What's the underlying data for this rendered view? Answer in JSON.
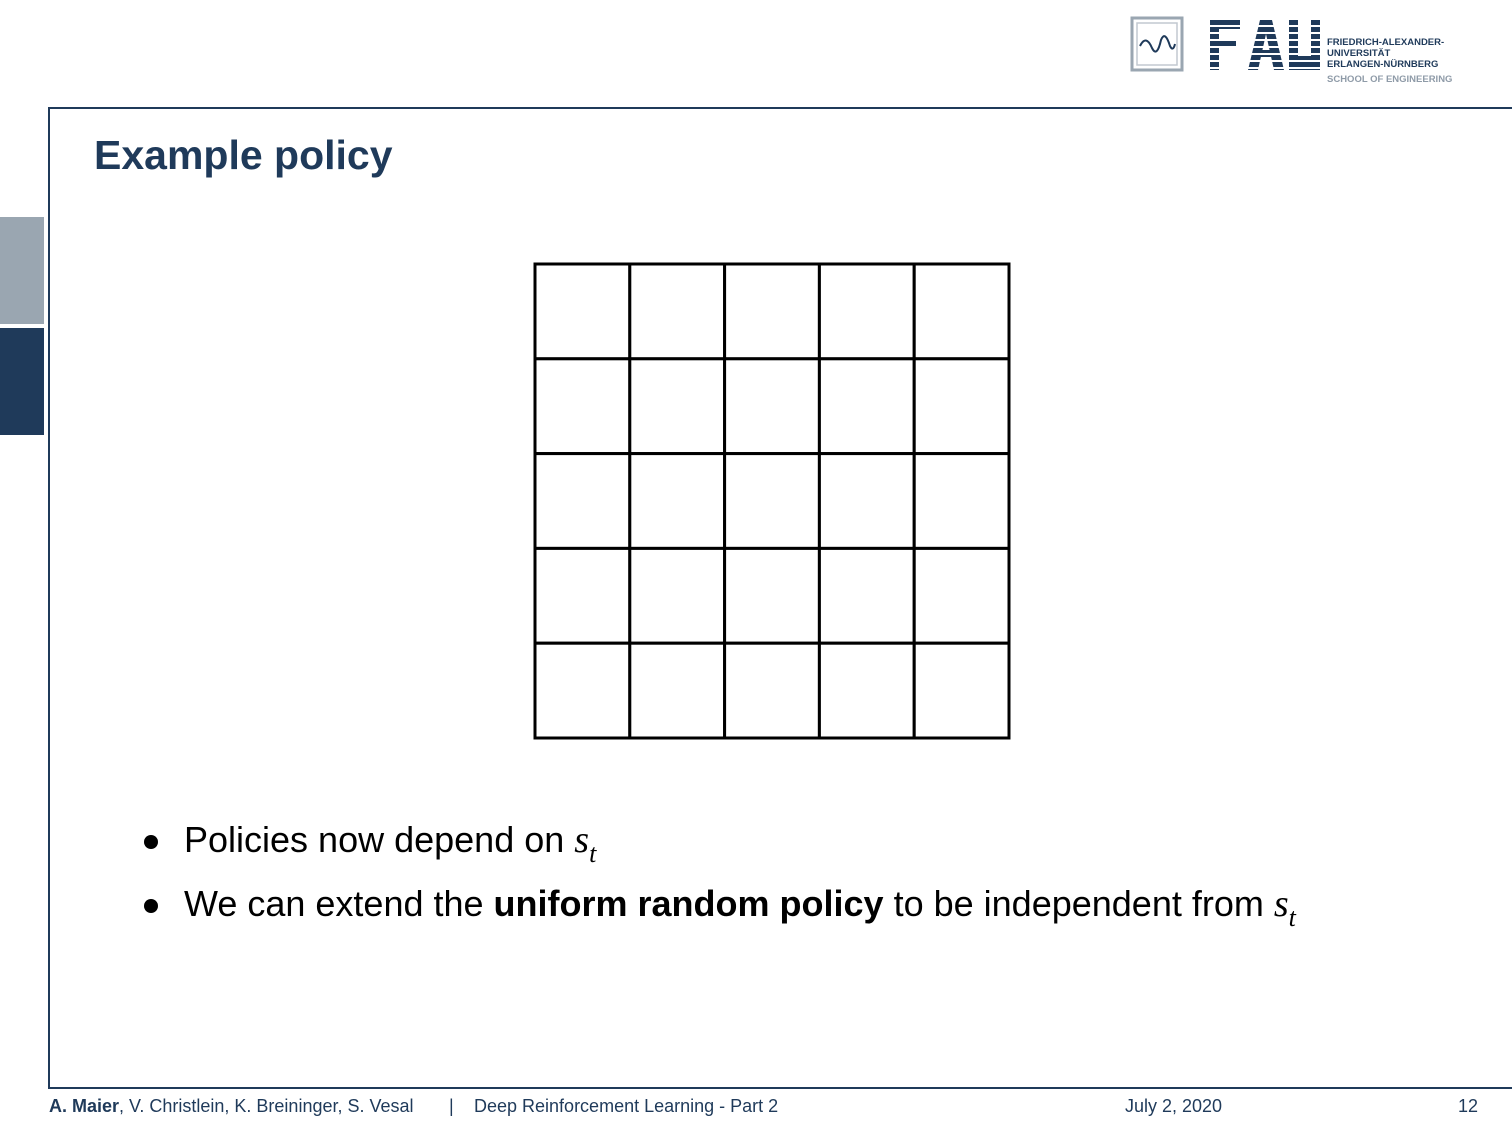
{
  "logo": {
    "university_lines": [
      "FRIEDRICH-ALEXANDER-",
      "UNIVERSITÄT",
      "ERLANGEN-NÜRNBERG"
    ],
    "school": "SCHOOL OF ENGINEERING",
    "mark": "FAU"
  },
  "slide": {
    "title": "Example policy",
    "grid": {
      "rows": 5,
      "cols": 5
    },
    "bullets": [
      {
        "before": "Policies now depend on ",
        "var": "s",
        "sub": "t"
      },
      {
        "before": "We can extend the ",
        "bold": "uniform random policy",
        "after": " to be independent from ",
        "var": "s",
        "sub": "t"
      }
    ]
  },
  "footer": {
    "lead_author": "A. Maier",
    "coauthors": ", V. Christlein, K. Breininger, S. Vesal",
    "separator": "|",
    "lecture": "Deep Reinforcement Learning - Part 2",
    "date": "July 2, 2020",
    "page": "12"
  },
  "colors": {
    "brand": "#1f3a5a",
    "accent_gray": "#9aa6b1"
  }
}
